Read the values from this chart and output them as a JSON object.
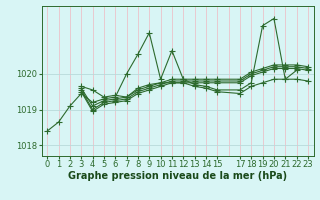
{
  "series": [
    {
      "x": [
        0,
        1,
        2,
        3,
        4,
        5,
        6,
        7,
        8,
        9,
        10,
        11,
        12,
        13,
        14,
        15,
        17,
        18,
        19,
        20,
        21,
        22,
        23
      ],
      "y": [
        1018.4,
        1018.65,
        1019.1,
        1019.45,
        1019.2,
        1019.3,
        1019.35,
        1020.0,
        1020.55,
        1021.15,
        1019.85,
        1020.65,
        1019.85,
        1019.7,
        1019.65,
        1019.55,
        1019.55,
        1019.75,
        1021.35,
        1021.55,
        1019.85,
        1020.1,
        null
      ]
    },
    {
      "x": [
        3,
        4,
        5,
        6,
        7,
        8,
        9,
        10,
        11,
        12,
        13,
        14,
        15,
        17,
        18,
        19,
        20,
        21,
        22,
        23
      ],
      "y": [
        1019.6,
        1019.1,
        1019.25,
        1019.3,
        1019.35,
        1019.55,
        1019.65,
        1019.75,
        1019.85,
        1019.85,
        1019.85,
        1019.85,
        1019.85,
        1019.85,
        1020.05,
        1020.15,
        1020.25,
        1020.25,
        1020.25,
        1020.2
      ]
    },
    {
      "x": [
        3,
        4,
        5,
        6,
        7,
        8,
        9,
        10,
        11,
        12,
        13,
        14,
        15,
        17,
        18,
        19,
        20,
        21,
        22,
        23
      ],
      "y": [
        1019.55,
        1019.0,
        1019.2,
        1019.25,
        1019.3,
        1019.5,
        1019.6,
        1019.7,
        1019.8,
        1019.8,
        1019.8,
        1019.8,
        1019.8,
        1019.8,
        1020.0,
        1020.1,
        1020.2,
        1020.2,
        1020.2,
        1020.15
      ]
    },
    {
      "x": [
        3,
        4,
        5,
        6,
        7,
        8,
        9,
        10,
        11,
        12,
        13,
        14,
        15,
        17,
        18,
        19,
        20,
        21,
        22,
        23
      ],
      "y": [
        1019.5,
        1018.95,
        1019.15,
        1019.2,
        1019.25,
        1019.45,
        1019.55,
        1019.65,
        1019.75,
        1019.75,
        1019.75,
        1019.75,
        1019.75,
        1019.75,
        1019.95,
        1020.05,
        1020.15,
        1020.15,
        1020.15,
        1020.1
      ]
    },
    {
      "x": [
        3,
        4,
        5,
        6,
        7,
        8,
        9,
        10,
        11,
        12,
        13,
        14,
        15,
        17,
        18,
        19,
        20,
        21,
        22,
        23
      ],
      "y": [
        1019.65,
        1019.55,
        1019.35,
        1019.4,
        1019.35,
        1019.6,
        1019.7,
        1019.75,
        1019.75,
        1019.75,
        1019.65,
        1019.6,
        1019.5,
        1019.45,
        1019.65,
        1019.75,
        1019.85,
        1019.85,
        1019.85,
        1019.8
      ]
    }
  ],
  "line_color": "#2d6a2d",
  "marker": "+",
  "marker_size": 4,
  "linewidth": 0.8,
  "background_color": "#d8f5f5",
  "grid_v_color": "#f0b8c0",
  "grid_h_color": "#b8dada",
  "xlabel": "Graphe pression niveau de la mer (hPa)",
  "xlabel_color": "#1a4a1a",
  "xlabel_fontsize": 7,
  "xticks": [
    0,
    1,
    2,
    3,
    4,
    5,
    6,
    7,
    8,
    9,
    10,
    11,
    12,
    13,
    14,
    15,
    17,
    18,
    19,
    20,
    21,
    22,
    23
  ],
  "xtick_labels": [
    "0",
    "1",
    "2",
    "3",
    "4",
    "5",
    "6",
    "7",
    "8",
    "9",
    "10",
    "11",
    "12",
    "13",
    "14",
    "15",
    "17",
    "18",
    "19",
    "20",
    "21",
    "22",
    "23"
  ],
  "yticks": [
    1018,
    1019,
    1020
  ],
  "ylim": [
    1017.7,
    1021.9
  ],
  "xlim": [
    -0.5,
    23.5
  ],
  "tick_color": "#2d6a2d",
  "tick_fontsize": 6
}
